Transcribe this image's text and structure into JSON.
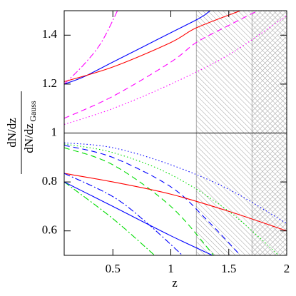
{
  "chart_data": {
    "type": "line",
    "xlabel": "z",
    "ylabel_numerator": "dN/dz",
    "ylabel_denominator": "dN/dz",
    "ylabel_subscript": "Gauss",
    "xlim": [
      0.08,
      2
    ],
    "ylim": [
      0.5,
      1.5
    ],
    "xticks": [
      0.5,
      1,
      1.5,
      2
    ],
    "yticks": [
      0.6,
      0.8,
      1,
      1.2,
      1.4
    ],
    "shaded_regions": [
      {
        "xlim": [
          1.22,
          2
        ],
        "hatch": "diagonal"
      },
      {
        "xlim": [
          1.7,
          2
        ],
        "hatch": "cross"
      }
    ],
    "series": [
      {
        "color": "#000000",
        "dash": "solid",
        "x": [
          0.08,
          2
        ],
        "values": [
          1,
          1
        ]
      },
      {
        "color": "#0000ff",
        "dash": "solid",
        "x": [
          0.08,
          0.25,
          0.5,
          0.75,
          1,
          1.25,
          1.34
        ],
        "values": [
          1.2,
          1.23,
          1.29,
          1.35,
          1.41,
          1.47,
          1.5
        ]
      },
      {
        "color": "#ff00ff",
        "dash": "dashdot",
        "x": [
          0.08,
          0.25,
          0.4,
          0.54
        ],
        "values": [
          1.2,
          1.28,
          1.37,
          1.5
        ]
      },
      {
        "color": "#ff0000",
        "dash": "solid",
        "x": [
          0.08,
          0.5,
          1,
          1.22,
          1.6
        ],
        "values": [
          1.21,
          1.27,
          1.37,
          1.43,
          1.5
        ]
      },
      {
        "color": "#ff00ff",
        "dash": "dashed",
        "x": [
          0.08,
          0.5,
          1,
          1.22,
          1.5,
          1.75
        ],
        "values": [
          1.06,
          1.15,
          1.29,
          1.37,
          1.44,
          1.5
        ]
      },
      {
        "color": "#ff00ff",
        "dash": "dotted",
        "x": [
          0.08,
          0.5,
          1,
          1.5,
          2
        ],
        "values": [
          1.035,
          1.1,
          1.2,
          1.32,
          1.48
        ]
      },
      {
        "color": "#0000ff",
        "dash": "dotted",
        "x": [
          0.08,
          0.5,
          1,
          1.5,
          2
        ],
        "values": [
          0.96,
          0.94,
          0.87,
          0.77,
          0.63
        ]
      },
      {
        "color": "#00dd00",
        "dash": "dotted",
        "x": [
          0.08,
          0.5,
          1,
          1.5,
          1.93
        ],
        "values": [
          0.955,
          0.92,
          0.83,
          0.68,
          0.5
        ]
      },
      {
        "color": "#0000ff",
        "dash": "dashed",
        "x": [
          0.08,
          0.5,
          1,
          1.3,
          1.6
        ],
        "values": [
          0.95,
          0.9,
          0.78,
          0.65,
          0.5
        ]
      },
      {
        "color": "#00dd00",
        "dash": "dashed",
        "x": [
          0.08,
          0.5,
          1,
          1.37
        ],
        "values": [
          0.94,
          0.87,
          0.7,
          0.5
        ]
      },
      {
        "color": "#ff0000",
        "dash": "solid",
        "x": [
          0.08,
          0.5,
          1,
          1.5,
          2
        ],
        "values": [
          0.835,
          0.8,
          0.75,
          0.68,
          0.6
        ]
      },
      {
        "color": "#0000ff",
        "dash": "dashdot",
        "x": [
          0.08,
          0.5,
          0.8,
          1.1
        ],
        "values": [
          0.835,
          0.74,
          0.63,
          0.5
        ]
      },
      {
        "color": "#00dd00",
        "dash": "dashdot",
        "x": [
          0.08,
          0.5,
          0.86
        ],
        "values": [
          0.8,
          0.65,
          0.5
        ]
      },
      {
        "color": "#0000ff",
        "dash": "solid",
        "x": [
          0.08,
          0.5,
          1,
          1.36
        ],
        "values": [
          0.8,
          0.7,
          0.58,
          0.5
        ]
      }
    ]
  }
}
